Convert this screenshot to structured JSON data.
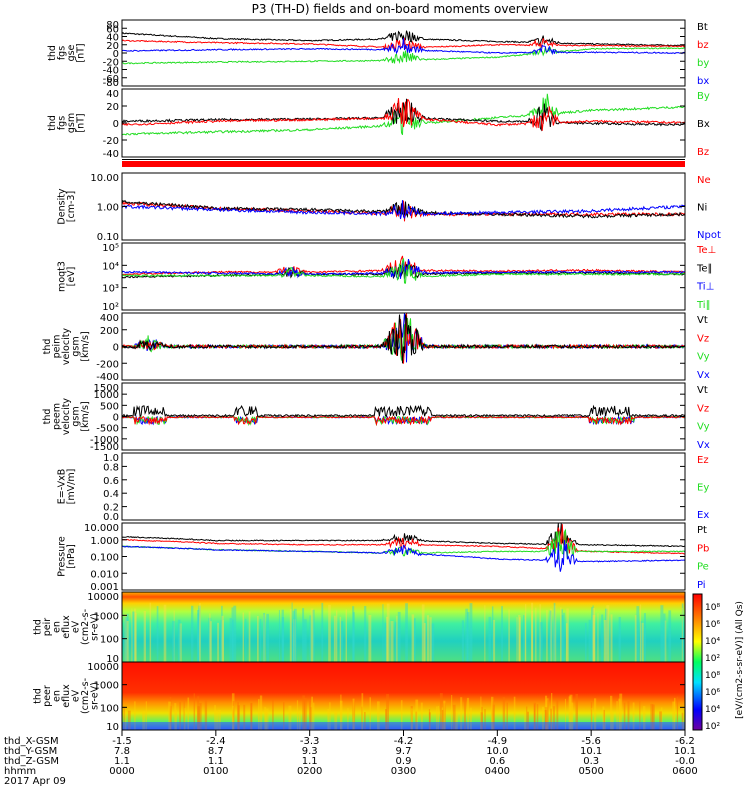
{
  "title": "P3 (TH-D) fields and on-board moments overview",
  "colors": {
    "black": "#000000",
    "red": "#ff0000",
    "green": "#22dd22",
    "blue": "#0000ff"
  },
  "panels": [
    {
      "id": "fgs-gse",
      "ylabel": [
        "thd",
        "fgs",
        "gse",
        "[nT]"
      ],
      "yticks": [
        "80",
        "60",
        "40",
        "20",
        "0",
        "-20",
        "-40",
        "-60",
        "-80"
      ],
      "legend": [
        {
          "label": "Bt",
          "color": "black"
        },
        {
          "label": "bz",
          "color": "red"
        },
        {
          "label": "by",
          "color": "green"
        },
        {
          "label": "bx",
          "color": "blue"
        }
      ]
    },
    {
      "id": "fgs-gsm",
      "ylabel": [
        "thd",
        "fgs",
        "gsm",
        "[nT]"
      ],
      "yticks": [
        "40",
        "20",
        "0",
        "-20",
        "-40"
      ],
      "legend": [
        {
          "label": "By",
          "color": "green"
        },
        {
          "label": "Bx",
          "color": "black"
        },
        {
          "label": "Bz",
          "color": "red"
        }
      ]
    },
    {
      "id": "density",
      "ylabel": [
        "Density",
        "[cm-3]"
      ],
      "yticks": [
        "10.00",
        "1.00",
        "0.10"
      ],
      "legend": [
        {
          "label": "Ne",
          "color": "red"
        },
        {
          "label": "Ni",
          "color": "black"
        },
        {
          "label": "Npot",
          "color": "blue"
        }
      ]
    },
    {
      "id": "temperature",
      "ylabel": [
        "moqt3",
        "[eV]"
      ],
      "yticks": [
        "10⁵",
        "10⁴",
        "10³",
        "10²"
      ],
      "legend": [
        {
          "label": "Te⊥",
          "color": "red"
        },
        {
          "label": "Te∥",
          "color": "black"
        },
        {
          "label": "Ti⊥",
          "color": "blue"
        },
        {
          "label": "Ti∥",
          "color": "green"
        }
      ]
    },
    {
      "id": "peim-velocity",
      "ylabel": [
        "thd",
        "peim",
        "velocity",
        "gsm",
        "[km/s]"
      ],
      "yticks": [
        "400",
        "200",
        "0",
        "-200",
        "-400"
      ],
      "legend": [
        {
          "label": "Vt",
          "color": "black"
        },
        {
          "label": "Vz",
          "color": "red"
        },
        {
          "label": "Vy",
          "color": "green"
        },
        {
          "label": "Vx",
          "color": "blue"
        }
      ]
    },
    {
      "id": "peem-velocity",
      "ylabel": [
        "thd",
        "peem",
        "velocity",
        "gsm",
        "[km/s]"
      ],
      "yticks": [
        "1500",
        "1000",
        "500",
        "0",
        "-500",
        "-1000",
        "-1500"
      ],
      "legend": [
        {
          "label": "Vt",
          "color": "black"
        },
        {
          "label": "Vz",
          "color": "red"
        },
        {
          "label": "Vy",
          "color": "green"
        },
        {
          "label": "Vx",
          "color": "blue"
        }
      ]
    },
    {
      "id": "efield",
      "ylabel": [
        "E=-VxB",
        "[mV/m]"
      ],
      "yticks": [
        "1.0",
        "0.8",
        "0.6",
        "0.4",
        "0.2",
        "0.0"
      ],
      "legend": [
        {
          "label": "Ez",
          "color": "red"
        },
        {
          "label": "Ey",
          "color": "green"
        },
        {
          "label": "Ex",
          "color": "blue"
        }
      ]
    },
    {
      "id": "pressure",
      "ylabel": [
        "Pressure",
        "[nPa]"
      ],
      "yticks": [
        "10.000",
        "1.000",
        "0.100",
        "0.010",
        "0.001"
      ],
      "legend": [
        {
          "label": "Pt",
          "color": "black"
        },
        {
          "label": "Pb",
          "color": "red"
        },
        {
          "label": "Pe",
          "color": "green"
        },
        {
          "label": "Pi",
          "color": "blue"
        }
      ]
    },
    {
      "id": "peir-spectrogram",
      "ylabel": [
        "thd",
        "peir",
        "en",
        "eflux",
        "eV",
        "(cm2-s-",
        "sr-eV)"
      ],
      "yticks": [
        "10000",
        "1000",
        "100",
        "10"
      ],
      "legend": []
    },
    {
      "id": "peer-spectrogram",
      "ylabel": [
        "thd",
        "peer",
        "en",
        "eflux",
        "eV",
        "(cm2-s-",
        "sr-eV)"
      ],
      "yticks": [
        "10000",
        "1000",
        "100",
        "10"
      ],
      "legend": []
    }
  ],
  "colorbar": {
    "ticks": [
      "10⁸",
      "10⁶",
      "10⁴",
      "10²"
    ],
    "label_upper": "[eV/(cm2-s-sr-eV)] (All Qs)",
    "label_lower": "[eV/(cm2-s-sr-eV)] (All Qs)"
  },
  "xaxis": {
    "rows": [
      {
        "label": "thd_X-GSM",
        "values": [
          "-1.5",
          "-2.4",
          "-3.3",
          "-4.2",
          "-4.9",
          "-5.6",
          "-6.2"
        ]
      },
      {
        "label": "thd_Y-GSM",
        "values": [
          "7.8",
          "8.7",
          "9.3",
          "9.7",
          "10.0",
          "10.1",
          "10.1"
        ]
      },
      {
        "label": "thd_Z-GSM",
        "values": [
          "1.1",
          "1.1",
          "1.1",
          "0.9",
          "0.6",
          "0.3",
          "-0.0"
        ]
      },
      {
        "label": "hhmm",
        "values": [
          "0000",
          "0100",
          "0200",
          "0300",
          "0400",
          "0500",
          "0600"
        ]
      }
    ],
    "date": "2017 Apr 09"
  },
  "chart_data": {
    "type": "line",
    "title": "P3 (TH-D) fields and on-board moments overview",
    "x": [
      "0000",
      "0100",
      "0200",
      "0300",
      "0400",
      "0500",
      "0600"
    ],
    "xlabel": "hhmm",
    "date": "2017 Apr 09",
    "series": [
      {
        "name": "Bt",
        "panel": "fgs-gse",
        "unit": "nT",
        "values": [
          48,
          35,
          30,
          35,
          28,
          22,
          18
        ]
      },
      {
        "name": "bz",
        "panel": "fgs-gse",
        "unit": "nT",
        "values": [
          30,
          25,
          22,
          12,
          20,
          18,
          16
        ]
      },
      {
        "name": "by",
        "panel": "fgs-gse",
        "unit": "nT",
        "values": [
          -25,
          -22,
          -20,
          -18,
          -10,
          10,
          12
        ]
      },
      {
        "name": "bx",
        "panel": "fgs-gse",
        "unit": "nT",
        "values": [
          5,
          8,
          10,
          8,
          0,
          2,
          0
        ]
      },
      {
        "name": "By",
        "panel": "fgs-gsm",
        "unit": "nT",
        "values": [
          -18,
          -15,
          -12,
          -5,
          5,
          15,
          20
        ]
      },
      {
        "name": "Bx",
        "panel": "fgs-gsm",
        "unit": "nT",
        "values": [
          0,
          2,
          3,
          5,
          0,
          -3,
          -5
        ]
      },
      {
        "name": "Bz",
        "panel": "fgs-gsm",
        "unit": "nT",
        "values": [
          -5,
          0,
          2,
          5,
          -5,
          0,
          -2
        ]
      },
      {
        "name": "Ne",
        "panel": "density",
        "unit": "cm-3",
        "values": [
          0.8,
          0.5,
          0.4,
          0.3,
          0.3,
          0.3,
          0.3
        ]
      },
      {
        "name": "Ni",
        "panel": "density",
        "unit": "cm-3",
        "values": [
          0.9,
          0.5,
          0.45,
          0.35,
          0.3,
          0.25,
          0.3
        ]
      },
      {
        "name": "Npot",
        "panel": "density",
        "unit": "cm-3",
        "values": [
          0.6,
          0.45,
          0.35,
          0.3,
          0.35,
          0.4,
          0.6
        ]
      },
      {
        "name": "Te⊥",
        "panel": "temperature",
        "unit": "eV",
        "values": [
          4000,
          5000,
          5000,
          6000,
          5500,
          6000,
          5000
        ]
      },
      {
        "name": "Te∥",
        "panel": "temperature",
        "unit": "eV",
        "values": [
          3000,
          3500,
          4000,
          4000,
          4500,
          4500,
          4000
        ]
      },
      {
        "name": "Ti⊥",
        "panel": "temperature",
        "unit": "eV",
        "values": [
          5000,
          4500,
          4000,
          4500,
          5000,
          5000,
          5000
        ]
      },
      {
        "name": "Ti∥",
        "panel": "temperature",
        "unit": "eV",
        "values": [
          3500,
          3500,
          3500,
          3000,
          4000,
          4000,
          4000
        ]
      },
      {
        "name": "Vt",
        "panel": "peim-velocity",
        "unit": "km/s",
        "values": [
          60,
          40,
          50,
          150,
          40,
          60,
          40
        ]
      },
      {
        "name": "Pt",
        "panel": "pressure",
        "unit": "nPa",
        "values": [
          1.5,
          0.9,
          0.9,
          0.9,
          0.6,
          0.5,
          0.4
        ]
      },
      {
        "name": "Pb",
        "panel": "pressure",
        "unit": "nPa",
        "values": [
          1.0,
          0.6,
          0.5,
          0.5,
          0.4,
          0.2,
          0.15
        ]
      },
      {
        "name": "Pe",
        "panel": "pressure",
        "unit": "nPa",
        "values": [
          0.4,
          0.25,
          0.2,
          0.15,
          0.2,
          0.2,
          0.2
        ]
      },
      {
        "name": "Pi",
        "panel": "pressure",
        "unit": "nPa",
        "values": [
          0.4,
          0.25,
          0.2,
          0.15,
          0.07,
          0.05,
          0.06
        ]
      }
    ]
  }
}
